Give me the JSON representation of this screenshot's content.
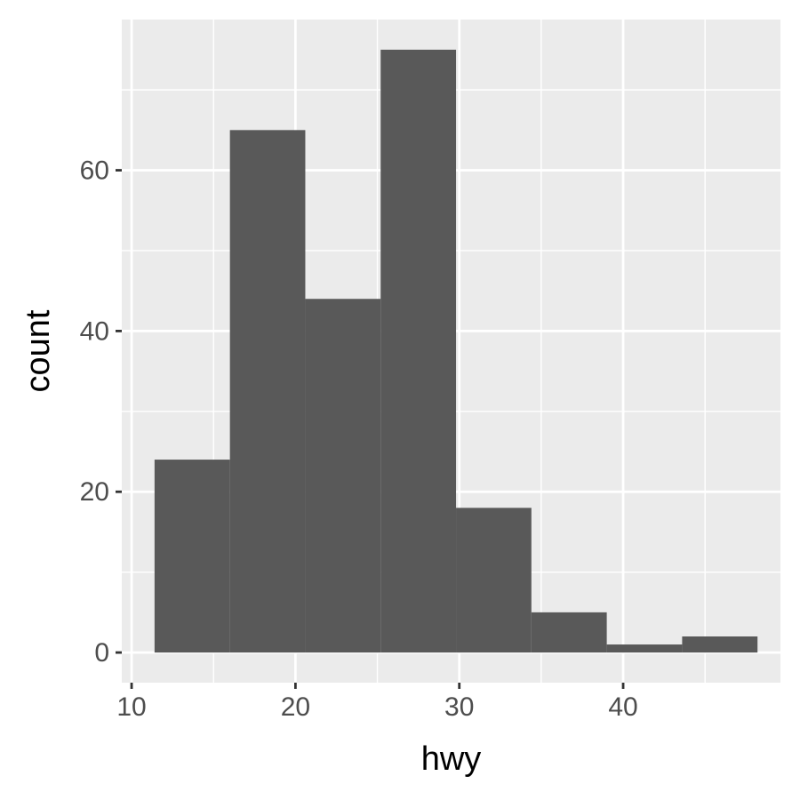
{
  "chart_data": {
    "type": "bar",
    "histogram": true,
    "title": "",
    "xlabel": "hwy",
    "ylabel": "count",
    "xlim": [
      9.4,
      49.6
    ],
    "ylim": [
      -3.75,
      78.75
    ],
    "x_ticks": [
      10,
      20,
      30,
      40
    ],
    "y_ticks": [
      0,
      20,
      40,
      60
    ],
    "grid": true,
    "bins": [
      {
        "start": 11.4,
        "end": 16.0,
        "count": 24
      },
      {
        "start": 16.0,
        "end": 20.6,
        "count": 65
      },
      {
        "start": 20.6,
        "end": 25.2,
        "count": 44
      },
      {
        "start": 25.2,
        "end": 29.8,
        "count": 75
      },
      {
        "start": 29.8,
        "end": 34.4,
        "count": 18
      },
      {
        "start": 34.4,
        "end": 39.0,
        "count": 5
      },
      {
        "start": 39.0,
        "end": 43.6,
        "count": 1
      },
      {
        "start": 43.6,
        "end": 48.2,
        "count": 2
      }
    ],
    "colors": {
      "panel": "#ebebeb",
      "grid": "#ffffff",
      "bar": "#595959",
      "tick": "#333333"
    }
  }
}
